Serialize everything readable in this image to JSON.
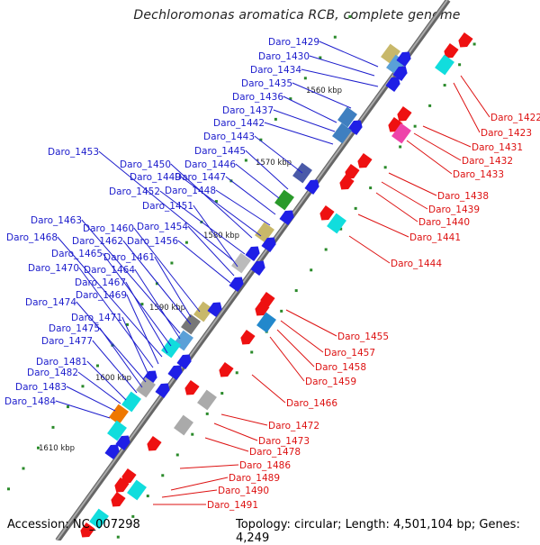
{
  "title": "Dechloromonas aromatica RCB, complete genome",
  "footer": {
    "accession_label": "Accession:",
    "accession": "NC_007298",
    "topology_label": "Topology:",
    "topology": "circular",
    "length_label": "Length:",
    "length": "4,501,104 bp",
    "genes_label": "Genes:",
    "genes": "4,249"
  },
  "colors": {
    "forward_label": "#1c1ccc",
    "reverse_label": "#dd1111",
    "forward_gene": "#1f1fe6",
    "reverse_gene": "#ee1111",
    "backbone": "#888888"
  },
  "ticks": [
    "1560 kbp",
    "1570 kbp",
    "1580 kbp",
    "1590 kbp",
    "1600 kbp",
    "1610 kbp"
  ],
  "forward_genes": [
    "Daro_1429",
    "Daro_1430",
    "Daro_1434",
    "Daro_1435",
    "Daro_1436",
    "Daro_1437",
    "Daro_1442",
    "Daro_1443",
    "Daro_1445",
    "Daro_1446",
    "Daro_1447",
    "Daro_1448",
    "Daro_1450",
    "Daro_1449",
    "Daro_1452",
    "Daro_1453",
    "Daro_1451",
    "Daro_1454",
    "Daro_1456",
    "Daro_1460",
    "Daro_1461",
    "Daro_1462",
    "Daro_1463",
    "Daro_1464",
    "Daro_1465",
    "Daro_1467",
    "Daro_1468",
    "Daro_1469",
    "Daro_1470",
    "Daro_1471",
    "Daro_1474",
    "Daro_1475",
    "Daro_1477",
    "Daro_1481",
    "Daro_1482",
    "Daro_1483",
    "Daro_1484"
  ],
  "reverse_genes": [
    "Daro_1422",
    "Daro_1423",
    "Daro_1431",
    "Daro_1432",
    "Daro_1433",
    "Daro_1438",
    "Daro_1439",
    "Daro_1440",
    "Daro_1441",
    "Daro_1444",
    "Daro_1455",
    "Daro_1457",
    "Daro_1458",
    "Daro_1459",
    "Daro_1466",
    "Daro_1472",
    "Daro_1473",
    "Daro_1478",
    "Daro_1486",
    "Daro_1489",
    "Daro_1490",
    "Daro_1491"
  ]
}
